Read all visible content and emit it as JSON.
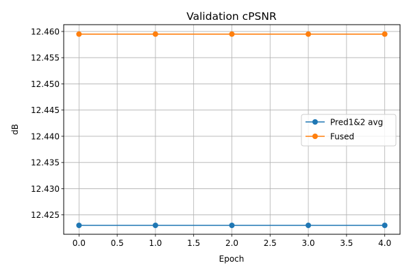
{
  "chart_data": {
    "type": "line",
    "title": "Validation cPSNR",
    "xlabel": "Epoch",
    "ylabel": "dB",
    "xlim": [
      -0.2,
      4.2
    ],
    "ylim": [
      12.4213,
      12.4613
    ],
    "xticks": [
      0.0,
      0.5,
      1.0,
      1.5,
      2.0,
      2.5,
      3.0,
      3.5,
      4.0
    ],
    "xtick_labels": [
      "0.0",
      "0.5",
      "1.0",
      "1.5",
      "2.0",
      "2.5",
      "3.0",
      "3.5",
      "4.0"
    ],
    "yticks": [
      12.425,
      12.43,
      12.435,
      12.44,
      12.445,
      12.45,
      12.455,
      12.46
    ],
    "ytick_labels": [
      "12.425",
      "12.430",
      "12.435",
      "12.440",
      "12.445",
      "12.450",
      "12.455",
      "12.460"
    ],
    "grid": true,
    "legend_position": "center-right",
    "x": [
      0,
      1,
      2,
      3,
      4
    ],
    "series": [
      {
        "name": "Pred1&2 avg",
        "color": "#1f77b4",
        "values": [
          12.423,
          12.423,
          12.423,
          12.423,
          12.423
        ]
      },
      {
        "name": "Fused",
        "color": "#ff7f0e",
        "values": [
          12.4595,
          12.4595,
          12.4595,
          12.4595,
          12.4595
        ]
      }
    ]
  }
}
